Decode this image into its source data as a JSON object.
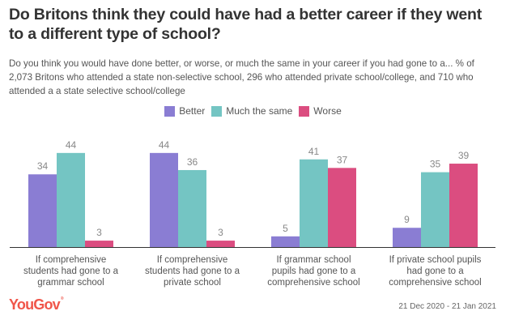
{
  "title": "Do Britons think they could have had a better career if they went to a different type of school?",
  "subtitle": "Do you think you would have done better, or worse, or much the same in your career if you had gone to a... % of 2,073 Britons who attended a state non-selective school, 296 who attended private school/college, and 710 who attended a a state selective school/college",
  "footer": {
    "logo": "YouGov",
    "date_range": "21 Dec 2020 - 21 Jan 2021"
  },
  "chart_data": {
    "type": "bar",
    "title": "Do Britons think they could have had a better career if they went to a different type of school?",
    "xlabel": "",
    "ylabel": "",
    "ylim": [
      0,
      44
    ],
    "grid": false,
    "legend_position": "top-center",
    "categories": [
      [
        "If comprehensive",
        "students had gone to a",
        "grammar school"
      ],
      [
        "If comprehensive",
        "students had gone to a",
        "private school"
      ],
      [
        "If grammar school",
        "pupils had gone to a",
        "comprehensive school"
      ],
      [
        "If private school pupils",
        "had gone to a",
        "comprehensive school"
      ]
    ],
    "series": [
      {
        "name": "Better",
        "color": "#8a7dd3",
        "values": [
          34,
          44,
          5,
          9
        ]
      },
      {
        "name": "Much the same",
        "color": "#74c5c3",
        "values": [
          44,
          36,
          41,
          35
        ]
      },
      {
        "name": "Worse",
        "color": "#db4d80",
        "values": [
          3,
          3,
          37,
          39
        ]
      }
    ]
  }
}
